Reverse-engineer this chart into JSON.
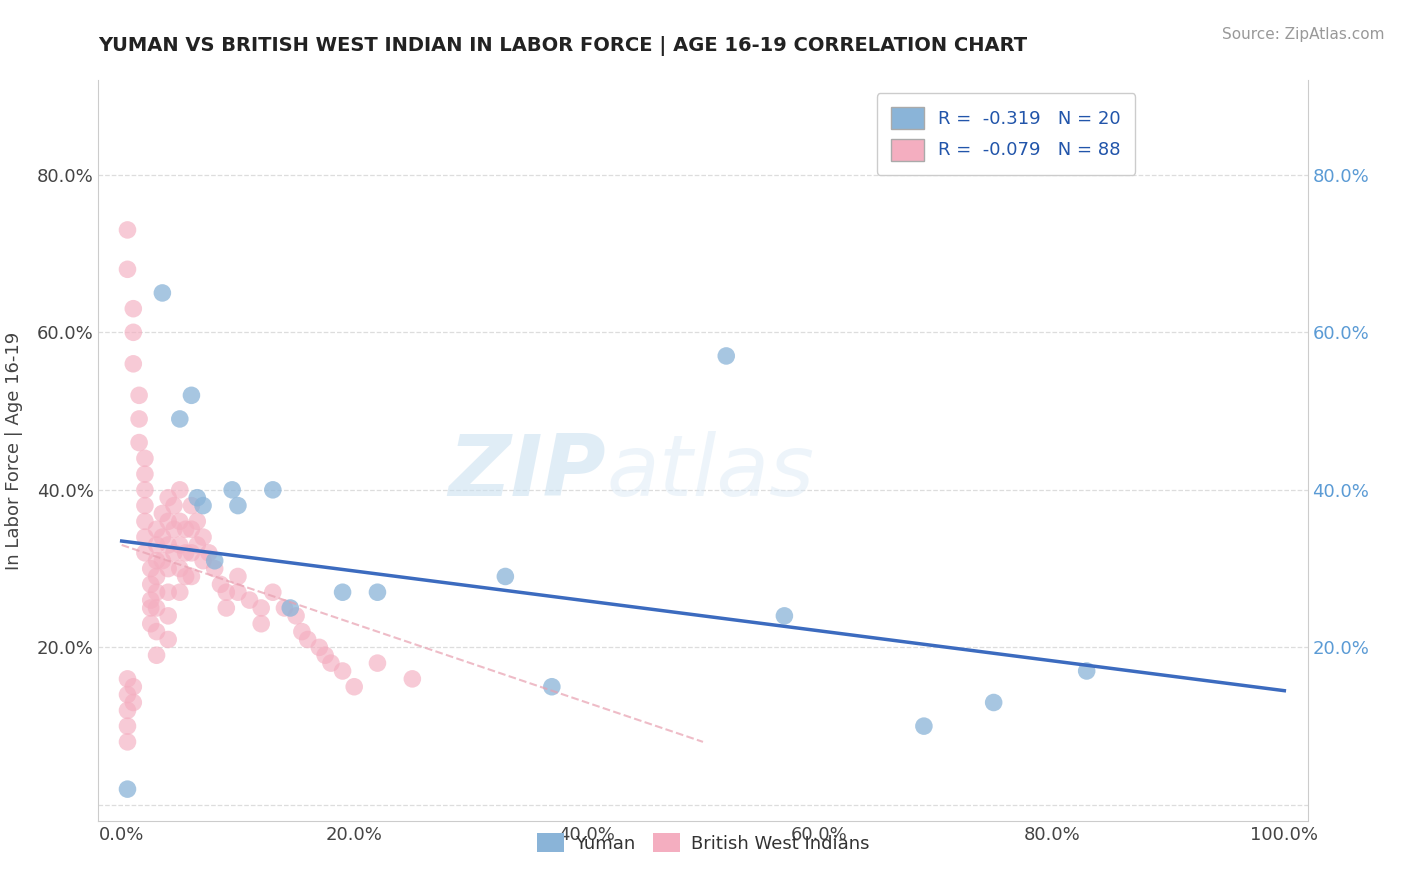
{
  "title": "YUMAN VS BRITISH WEST INDIAN IN LABOR FORCE | AGE 16-19 CORRELATION CHART",
  "source": "Source: ZipAtlas.com",
  "ylabel": "In Labor Force | Age 16-19",
  "xlim": [
    -0.02,
    1.02
  ],
  "ylim": [
    -0.02,
    0.92
  ],
  "xticks": [
    0.0,
    0.2,
    0.4,
    0.6,
    0.8,
    1.0
  ],
  "yticks": [
    0.0,
    0.2,
    0.4,
    0.6,
    0.8
  ],
  "xtick_labels": [
    "0.0%",
    "20.0%",
    "40.0%",
    "60.0%",
    "80.0%",
    "100.0%"
  ],
  "ytick_labels": [
    "",
    "20.0%",
    "40.0%",
    "60.0%",
    "80.0%"
  ],
  "right_ytick_labels": [
    "",
    "20.0%",
    "40.0%",
    "60.0%",
    "80.0%"
  ],
  "blue_color": "#8ab4d8",
  "pink_color": "#f4aec0",
  "blue_line_color": "#3c6bbf",
  "pink_line_color": "#e8a0b0",
  "background_color": "#ffffff",
  "grid_color": "#dddddd",
  "watermark_zip": "ZIP",
  "watermark_atlas": "atlas",
  "blue_scatter": [
    [
      0.005,
      0.02
    ],
    [
      0.035,
      0.65
    ],
    [
      0.05,
      0.49
    ],
    [
      0.06,
      0.52
    ],
    [
      0.065,
      0.39
    ],
    [
      0.07,
      0.38
    ],
    [
      0.08,
      0.31
    ],
    [
      0.095,
      0.4
    ],
    [
      0.1,
      0.38
    ],
    [
      0.13,
      0.4
    ],
    [
      0.145,
      0.25
    ],
    [
      0.19,
      0.27
    ],
    [
      0.22,
      0.27
    ],
    [
      0.33,
      0.29
    ],
    [
      0.37,
      0.15
    ],
    [
      0.52,
      0.57
    ],
    [
      0.57,
      0.24
    ],
    [
      0.69,
      0.1
    ],
    [
      0.75,
      0.13
    ],
    [
      0.83,
      0.17
    ]
  ],
  "pink_scatter": [
    [
      0.005,
      0.73
    ],
    [
      0.005,
      0.68
    ],
    [
      0.01,
      0.63
    ],
    [
      0.01,
      0.6
    ],
    [
      0.01,
      0.56
    ],
    [
      0.015,
      0.52
    ],
    [
      0.015,
      0.49
    ],
    [
      0.015,
      0.46
    ],
    [
      0.02,
      0.44
    ],
    [
      0.02,
      0.42
    ],
    [
      0.02,
      0.4
    ],
    [
      0.02,
      0.38
    ],
    [
      0.02,
      0.36
    ],
    [
      0.02,
      0.34
    ],
    [
      0.02,
      0.32
    ],
    [
      0.025,
      0.3
    ],
    [
      0.025,
      0.28
    ],
    [
      0.025,
      0.26
    ],
    [
      0.025,
      0.25
    ],
    [
      0.025,
      0.23
    ],
    [
      0.03,
      0.35
    ],
    [
      0.03,
      0.33
    ],
    [
      0.03,
      0.31
    ],
    [
      0.03,
      0.29
    ],
    [
      0.03,
      0.27
    ],
    [
      0.03,
      0.25
    ],
    [
      0.03,
      0.22
    ],
    [
      0.03,
      0.19
    ],
    [
      0.035,
      0.37
    ],
    [
      0.035,
      0.34
    ],
    [
      0.035,
      0.31
    ],
    [
      0.04,
      0.39
    ],
    [
      0.04,
      0.36
    ],
    [
      0.04,
      0.33
    ],
    [
      0.04,
      0.3
    ],
    [
      0.04,
      0.27
    ],
    [
      0.04,
      0.24
    ],
    [
      0.04,
      0.21
    ],
    [
      0.045,
      0.38
    ],
    [
      0.045,
      0.35
    ],
    [
      0.045,
      0.32
    ],
    [
      0.05,
      0.4
    ],
    [
      0.05,
      0.36
    ],
    [
      0.05,
      0.33
    ],
    [
      0.05,
      0.3
    ],
    [
      0.05,
      0.27
    ],
    [
      0.055,
      0.35
    ],
    [
      0.055,
      0.32
    ],
    [
      0.055,
      0.29
    ],
    [
      0.06,
      0.38
    ],
    [
      0.06,
      0.35
    ],
    [
      0.06,
      0.32
    ],
    [
      0.06,
      0.29
    ],
    [
      0.065,
      0.36
    ],
    [
      0.065,
      0.33
    ],
    [
      0.07,
      0.34
    ],
    [
      0.07,
      0.31
    ],
    [
      0.075,
      0.32
    ],
    [
      0.08,
      0.3
    ],
    [
      0.085,
      0.28
    ],
    [
      0.09,
      0.27
    ],
    [
      0.09,
      0.25
    ],
    [
      0.1,
      0.29
    ],
    [
      0.1,
      0.27
    ],
    [
      0.11,
      0.26
    ],
    [
      0.12,
      0.25
    ],
    [
      0.12,
      0.23
    ],
    [
      0.13,
      0.27
    ],
    [
      0.14,
      0.25
    ],
    [
      0.15,
      0.24
    ],
    [
      0.155,
      0.22
    ],
    [
      0.16,
      0.21
    ],
    [
      0.17,
      0.2
    ],
    [
      0.175,
      0.19
    ],
    [
      0.18,
      0.18
    ],
    [
      0.19,
      0.17
    ],
    [
      0.2,
      0.15
    ],
    [
      0.005,
      0.16
    ],
    [
      0.005,
      0.14
    ],
    [
      0.005,
      0.12
    ],
    [
      0.005,
      0.1
    ],
    [
      0.005,
      0.08
    ],
    [
      0.01,
      0.15
    ],
    [
      0.01,
      0.13
    ],
    [
      0.22,
      0.18
    ],
    [
      0.25,
      0.16
    ]
  ]
}
